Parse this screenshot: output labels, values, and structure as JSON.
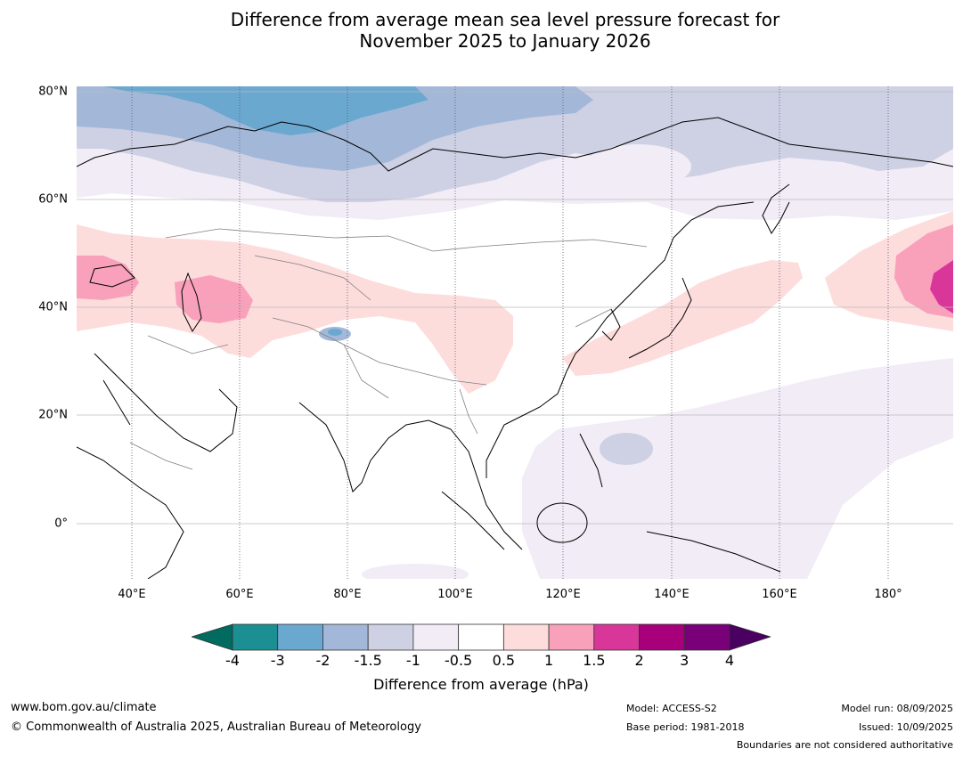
{
  "title": {
    "line1": "Difference from average mean sea level pressure forecast for",
    "line2": "November 2025 to January 2026"
  },
  "map": {
    "lat_labels": [
      "80°N",
      "60°N",
      "40°N",
      "20°N",
      "0°"
    ],
    "lat_values": [
      80,
      60,
      40,
      20,
      0
    ],
    "lon_labels": [
      "40°E",
      "60°E",
      "80°E",
      "100°E",
      "120°E",
      "140°E",
      "160°E",
      "180°"
    ],
    "lon_values": [
      40,
      60,
      80,
      100,
      120,
      140,
      160,
      180
    ],
    "extent": {
      "lon_min": 30,
      "lon_max": 192,
      "lat_min": -10,
      "lat_max": 81
    }
  },
  "colorbar": {
    "tick_labels": [
      "-4",
      "-3",
      "-2",
      "-1.5",
      "-1",
      "-0.5",
      "0.5",
      "1",
      "1.5",
      "2",
      "3",
      "4"
    ],
    "colors": [
      "#1b8f92",
      "#6ba8d0",
      "#a3b8d8",
      "#ced0e4",
      "#f1ecf5",
      "#ffffff",
      "#fddcdc",
      "#f9a0bb",
      "#d9369a",
      "#a8007a",
      "#7a007a"
    ],
    "under_color": "#006b5e",
    "over_color": "#4a0060",
    "label": "Difference from average (hPa)"
  },
  "footer": {
    "website": "www.bom.gov.au/climate",
    "copyright": "© Commonwealth of Australia 2025, Australian Bureau of Meteorology",
    "model": "Model: ACCESS-S2",
    "base_period": "Base period: 1981-2018",
    "model_run": "Model run: 08/09/2025",
    "issued": "Issued: 10/09/2025",
    "disclaimer": "Boundaries are not considered authoritative"
  }
}
